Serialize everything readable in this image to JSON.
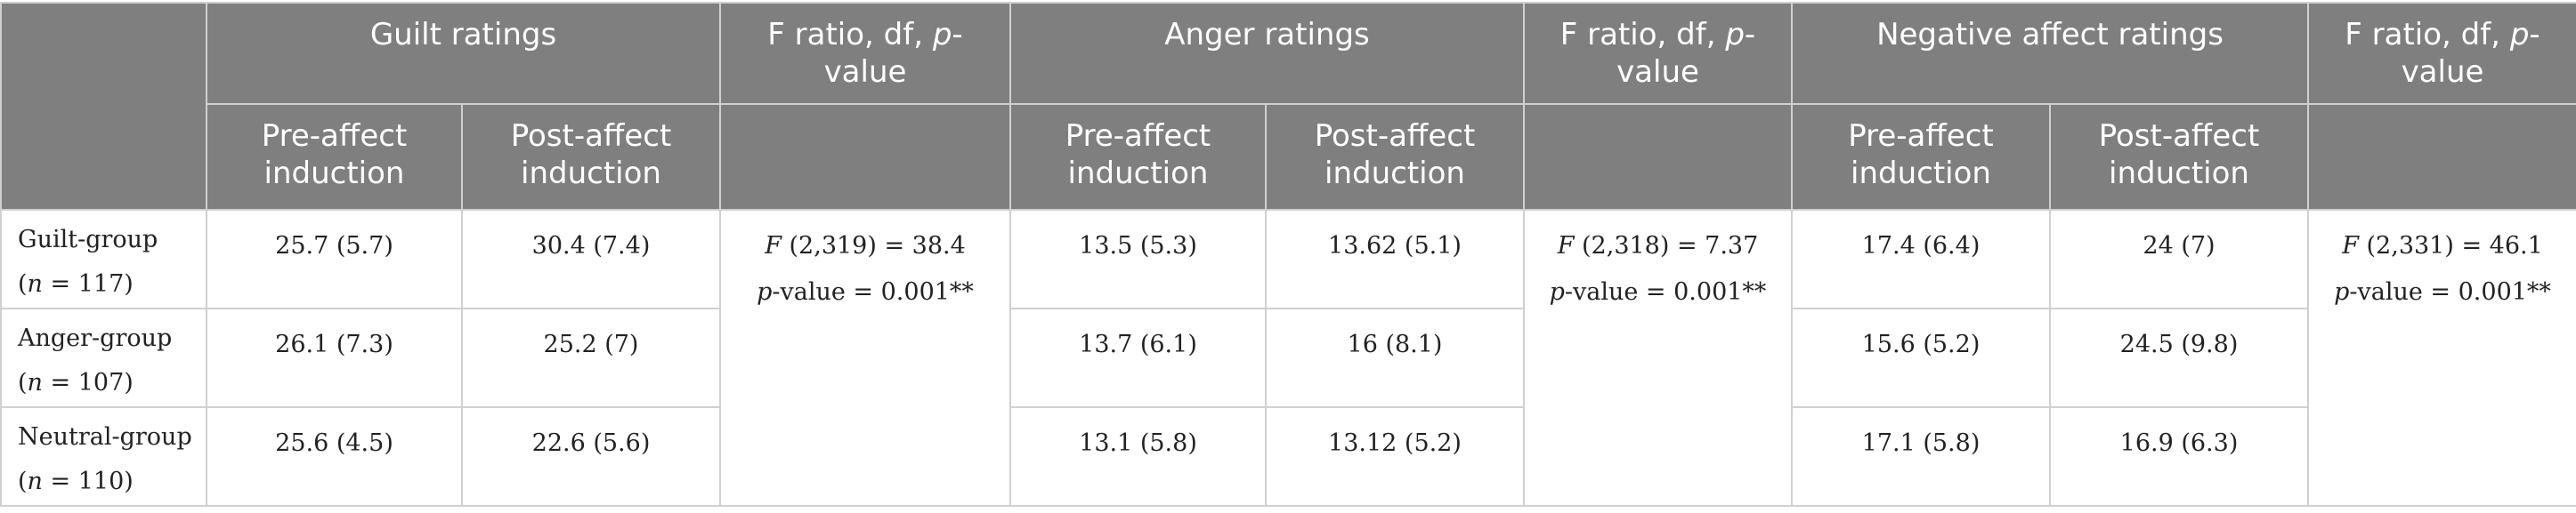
{
  "header": {
    "guilt": "Guilt ratings",
    "anger": "Anger ratings",
    "negative": "Negative affect ratings",
    "fratio_prefix": "F ratio, df, ",
    "fratio_p": "p",
    "fratio_suffix": "-value",
    "pre": "Pre-affect induction",
    "post": "Post-affect induction"
  },
  "stats": {
    "guilt": {
      "f": "F",
      "df": " (2,319) = 38.4",
      "p": "p",
      "pval": "-value = 0.001**"
    },
    "anger": {
      "f": "F",
      "df": " (2,318) = 7.37",
      "p": "p",
      "pval": "-value = 0.001**"
    },
    "negative": {
      "f": "F",
      "df": " (2,331) = 46.1",
      "p": "p",
      "pval": "-value = 0.001**"
    }
  },
  "rows": [
    {
      "group": "Guilt-group",
      "n_open": "(",
      "n": "n",
      "n_rest": " = 117)",
      "guilt_pre": "25.7 (5.7)",
      "guilt_post": "30.4 (7.4)",
      "anger_pre": "13.5 (5.3)",
      "anger_post": "13.62 (5.1)",
      "neg_pre": "17.4 (6.4)",
      "neg_post": "24 (7)"
    },
    {
      "group": "Anger-group",
      "n_open": "(",
      "n": "n",
      "n_rest": " = 107)",
      "guilt_pre": "26.1 (7.3)",
      "guilt_post": "25.2 (7)",
      "anger_pre": "13.7 (6.1)",
      "anger_post": "16 (8.1)",
      "neg_pre": "15.6 (5.2)",
      "neg_post": "24.5 (9.8)"
    },
    {
      "group": "Neutral-group",
      "n_open": "(",
      "n": "n",
      "n_rest": " = 110)",
      "guilt_pre": "25.6 (4.5)",
      "guilt_post": "22.6 (5.6)",
      "anger_pre": "13.1 (5.8)",
      "anger_post": "13.12 (5.2)",
      "neg_pre": "17.1 (5.8)",
      "neg_post": "16.9 (6.3)"
    }
  ]
}
